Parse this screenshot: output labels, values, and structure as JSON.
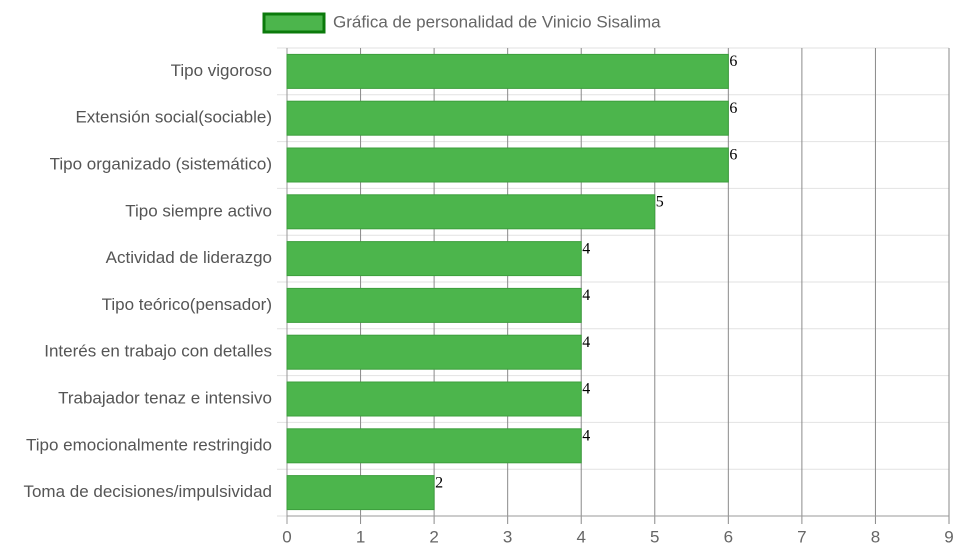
{
  "chart_data": {
    "type": "hbar",
    "categories": [
      "Tipo vigoroso",
      "Extensión social(sociable)",
      "Tipo organizado (sistemático)",
      "Tipo siempre activo",
      "Actividad de liderazgo",
      "Tipo teórico(pensador)",
      "Interés en trabajo con detalles",
      "Trabajador tenaz e intensivo",
      "Tipo emocionalmente restringido",
      "Toma de decisiones/impulsividad"
    ],
    "series": [
      {
        "name": "Gráfica de personalidad de Vinicio Sisalima",
        "color": "#4cb54c",
        "values": [
          6,
          6,
          6,
          5,
          4,
          4,
          4,
          4,
          4,
          2
        ]
      }
    ],
    "xlim": [
      0,
      9
    ],
    "xticks": [
      0,
      1,
      2,
      3,
      4,
      5,
      6,
      7,
      8,
      9
    ],
    "grid": true,
    "legend": "top"
  }
}
